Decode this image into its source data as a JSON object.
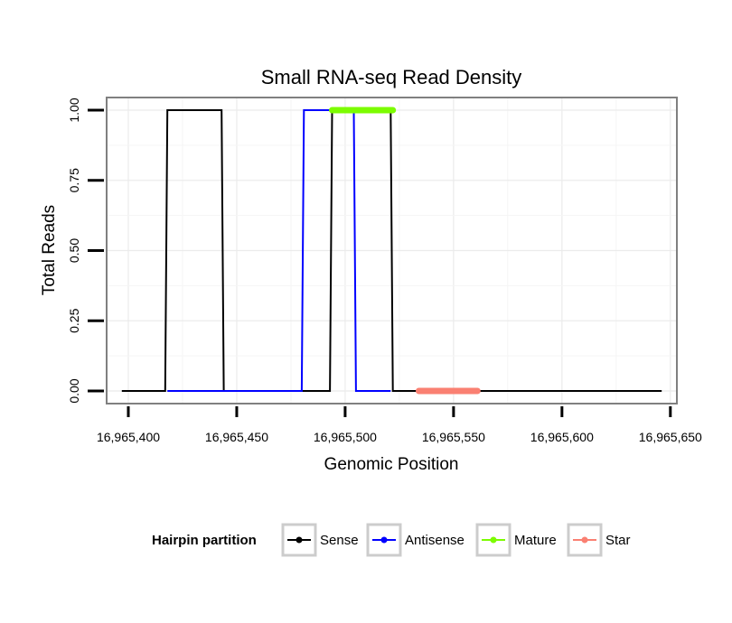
{
  "chart_data": {
    "type": "line",
    "title": "Small RNA-seq Read Density",
    "xlabel": "Genomic Position",
    "ylabel": "Total Reads",
    "xlim": [
      16965390,
      16965653
    ],
    "ylim": [
      -0.045,
      1.045
    ],
    "x_ticks": [
      16965400,
      16965450,
      16965500,
      16965550,
      16965600,
      16965650
    ],
    "x_tick_labels": [
      "16,965,400",
      "16,965,450",
      "16,965,500",
      "16,965,550",
      "16,965,600",
      "16,965,650"
    ],
    "y_ticks": [
      0,
      0.25,
      0.5,
      0.75,
      1.0
    ],
    "y_tick_labels": [
      "0.00",
      "0.25",
      "0.50",
      "0.75",
      "1.00"
    ],
    "grid": true,
    "legend": {
      "title": "Hairpin partition",
      "position": "bottom",
      "entries": [
        {
          "label": "Sense",
          "color": "#000000"
        },
        {
          "label": "Antisense",
          "color": "#0000ff"
        },
        {
          "label": "Mature",
          "color": "#7cfc00"
        },
        {
          "label": "Star",
          "color": "#fa8072"
        }
      ]
    },
    "series": [
      {
        "name": "Sense",
        "color": "#000000",
        "width": "thin",
        "x": [
          16965397,
          16965417,
          16965418,
          16965443,
          16965444,
          16965493,
          16965494,
          16965521,
          16965522,
          16965646
        ],
        "y": [
          0,
          0,
          1,
          1,
          0,
          0,
          1,
          1,
          0,
          0
        ]
      },
      {
        "name": "Antisense",
        "color": "#0000ff",
        "width": "thin",
        "x": [
          16965418,
          16965443,
          16965444,
          16965480,
          16965481,
          16965504,
          16965505,
          16965521
        ],
        "y": [
          0,
          0,
          0,
          0,
          1,
          1,
          0,
          0
        ]
      },
      {
        "name": "Mature",
        "color": "#7cfc00",
        "width": "thick",
        "x": [
          16965494,
          16965522
        ],
        "y": [
          1,
          1
        ]
      },
      {
        "name": "Star",
        "color": "#fa8072",
        "width": "thick",
        "x": [
          16965534,
          16965561
        ],
        "y": [
          0,
          0
        ]
      }
    ]
  }
}
